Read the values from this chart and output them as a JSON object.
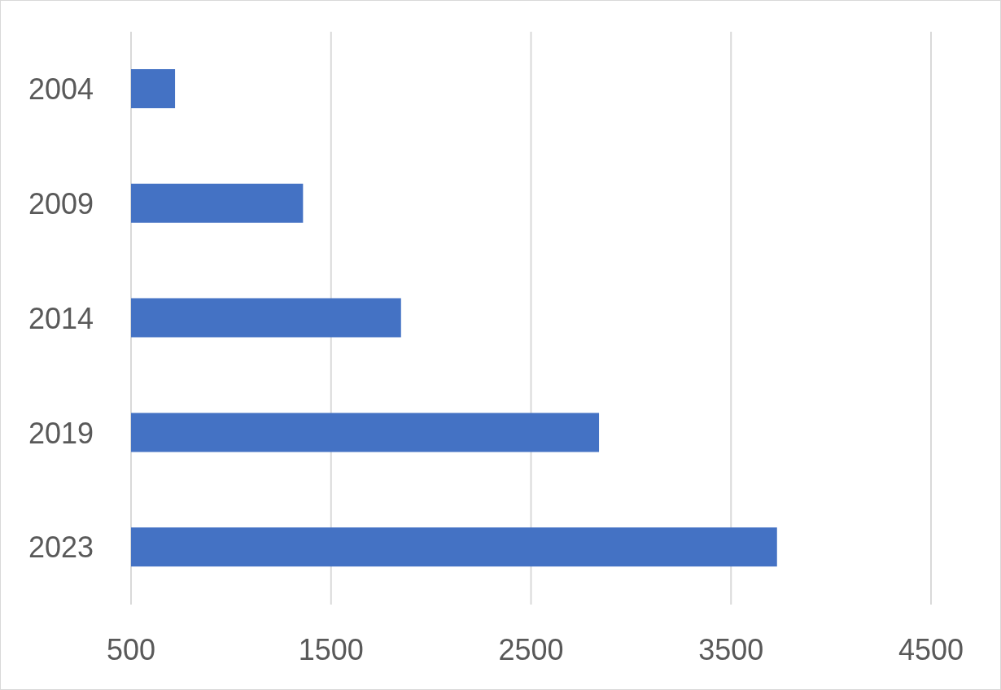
{
  "chart_data": {
    "type": "bar",
    "orientation": "horizontal",
    "categories": [
      "2004",
      "2009",
      "2014",
      "2019",
      "2023"
    ],
    "values": [
      720,
      1360,
      1850,
      2840,
      3730
    ],
    "color": "#4472c4",
    "xlim": [
      500,
      4500
    ],
    "xticks": [
      500,
      1500,
      2500,
      3500,
      4500
    ],
    "grid": "x"
  }
}
